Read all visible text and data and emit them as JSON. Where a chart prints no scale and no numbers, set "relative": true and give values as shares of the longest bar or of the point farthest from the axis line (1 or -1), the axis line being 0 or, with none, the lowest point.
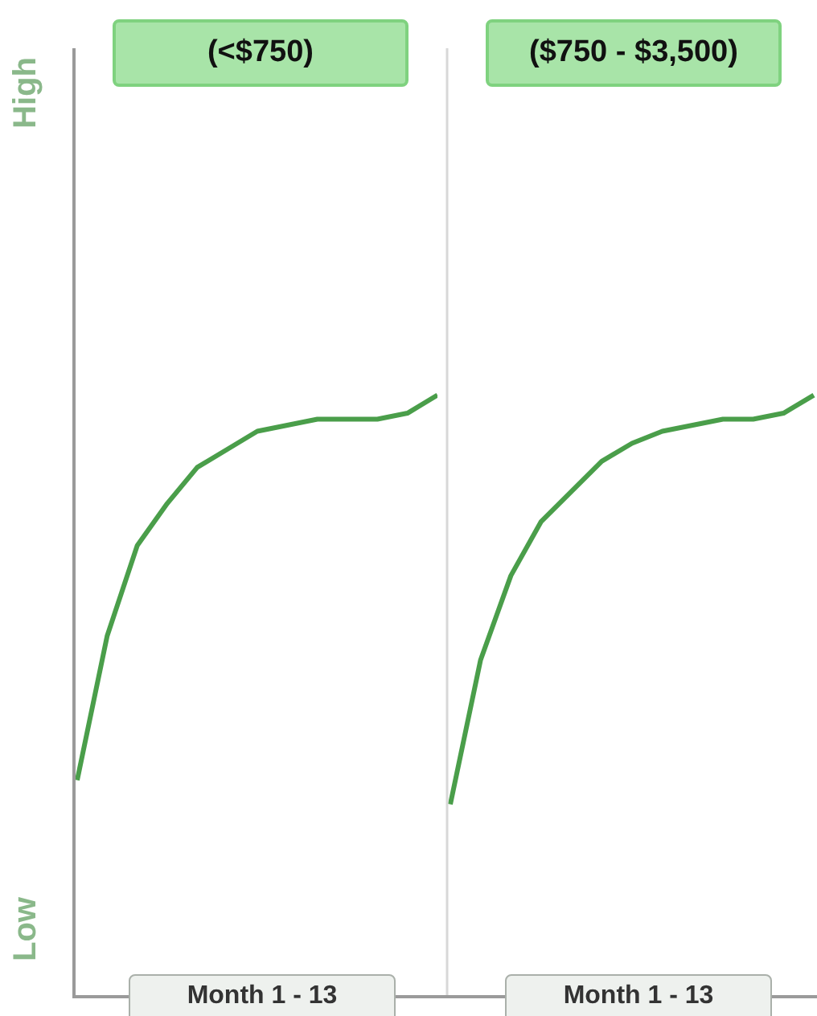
{
  "chart_data": [
    {
      "type": "line",
      "title": "(<$750)",
      "xlabel": "Month 1 - 13",
      "annotations": [
        "Low",
        "High"
      ],
      "relative": true,
      "categories": [
        null,
        null,
        null,
        null,
        null,
        null,
        null,
        null,
        null,
        null,
        null,
        null,
        null
      ],
      "series": [
        {
          "color": "#4a9e4a",
          "values": [
            0.36,
            0.6,
            0.75,
            0.82,
            0.88,
            0.91,
            0.94,
            0.95,
            0.96,
            0.96,
            0.96,
            0.97,
            1
          ]
        }
      ]
    },
    {
      "type": "line",
      "title": "($750 - $3,500)",
      "xlabel": "Month 1 - 13",
      "relative": true,
      "categories": [
        null,
        null,
        null,
        null,
        null,
        null,
        null,
        null,
        null,
        null,
        null,
        null,
        null
      ],
      "series": [
        {
          "color": "#4a9e4a",
          "values": [
            0.32,
            0.56,
            0.7,
            0.79,
            0.84,
            0.89,
            0.92,
            0.94,
            0.95,
            0.96,
            0.96,
            0.97,
            1
          ]
        }
      ]
    }
  ]
}
